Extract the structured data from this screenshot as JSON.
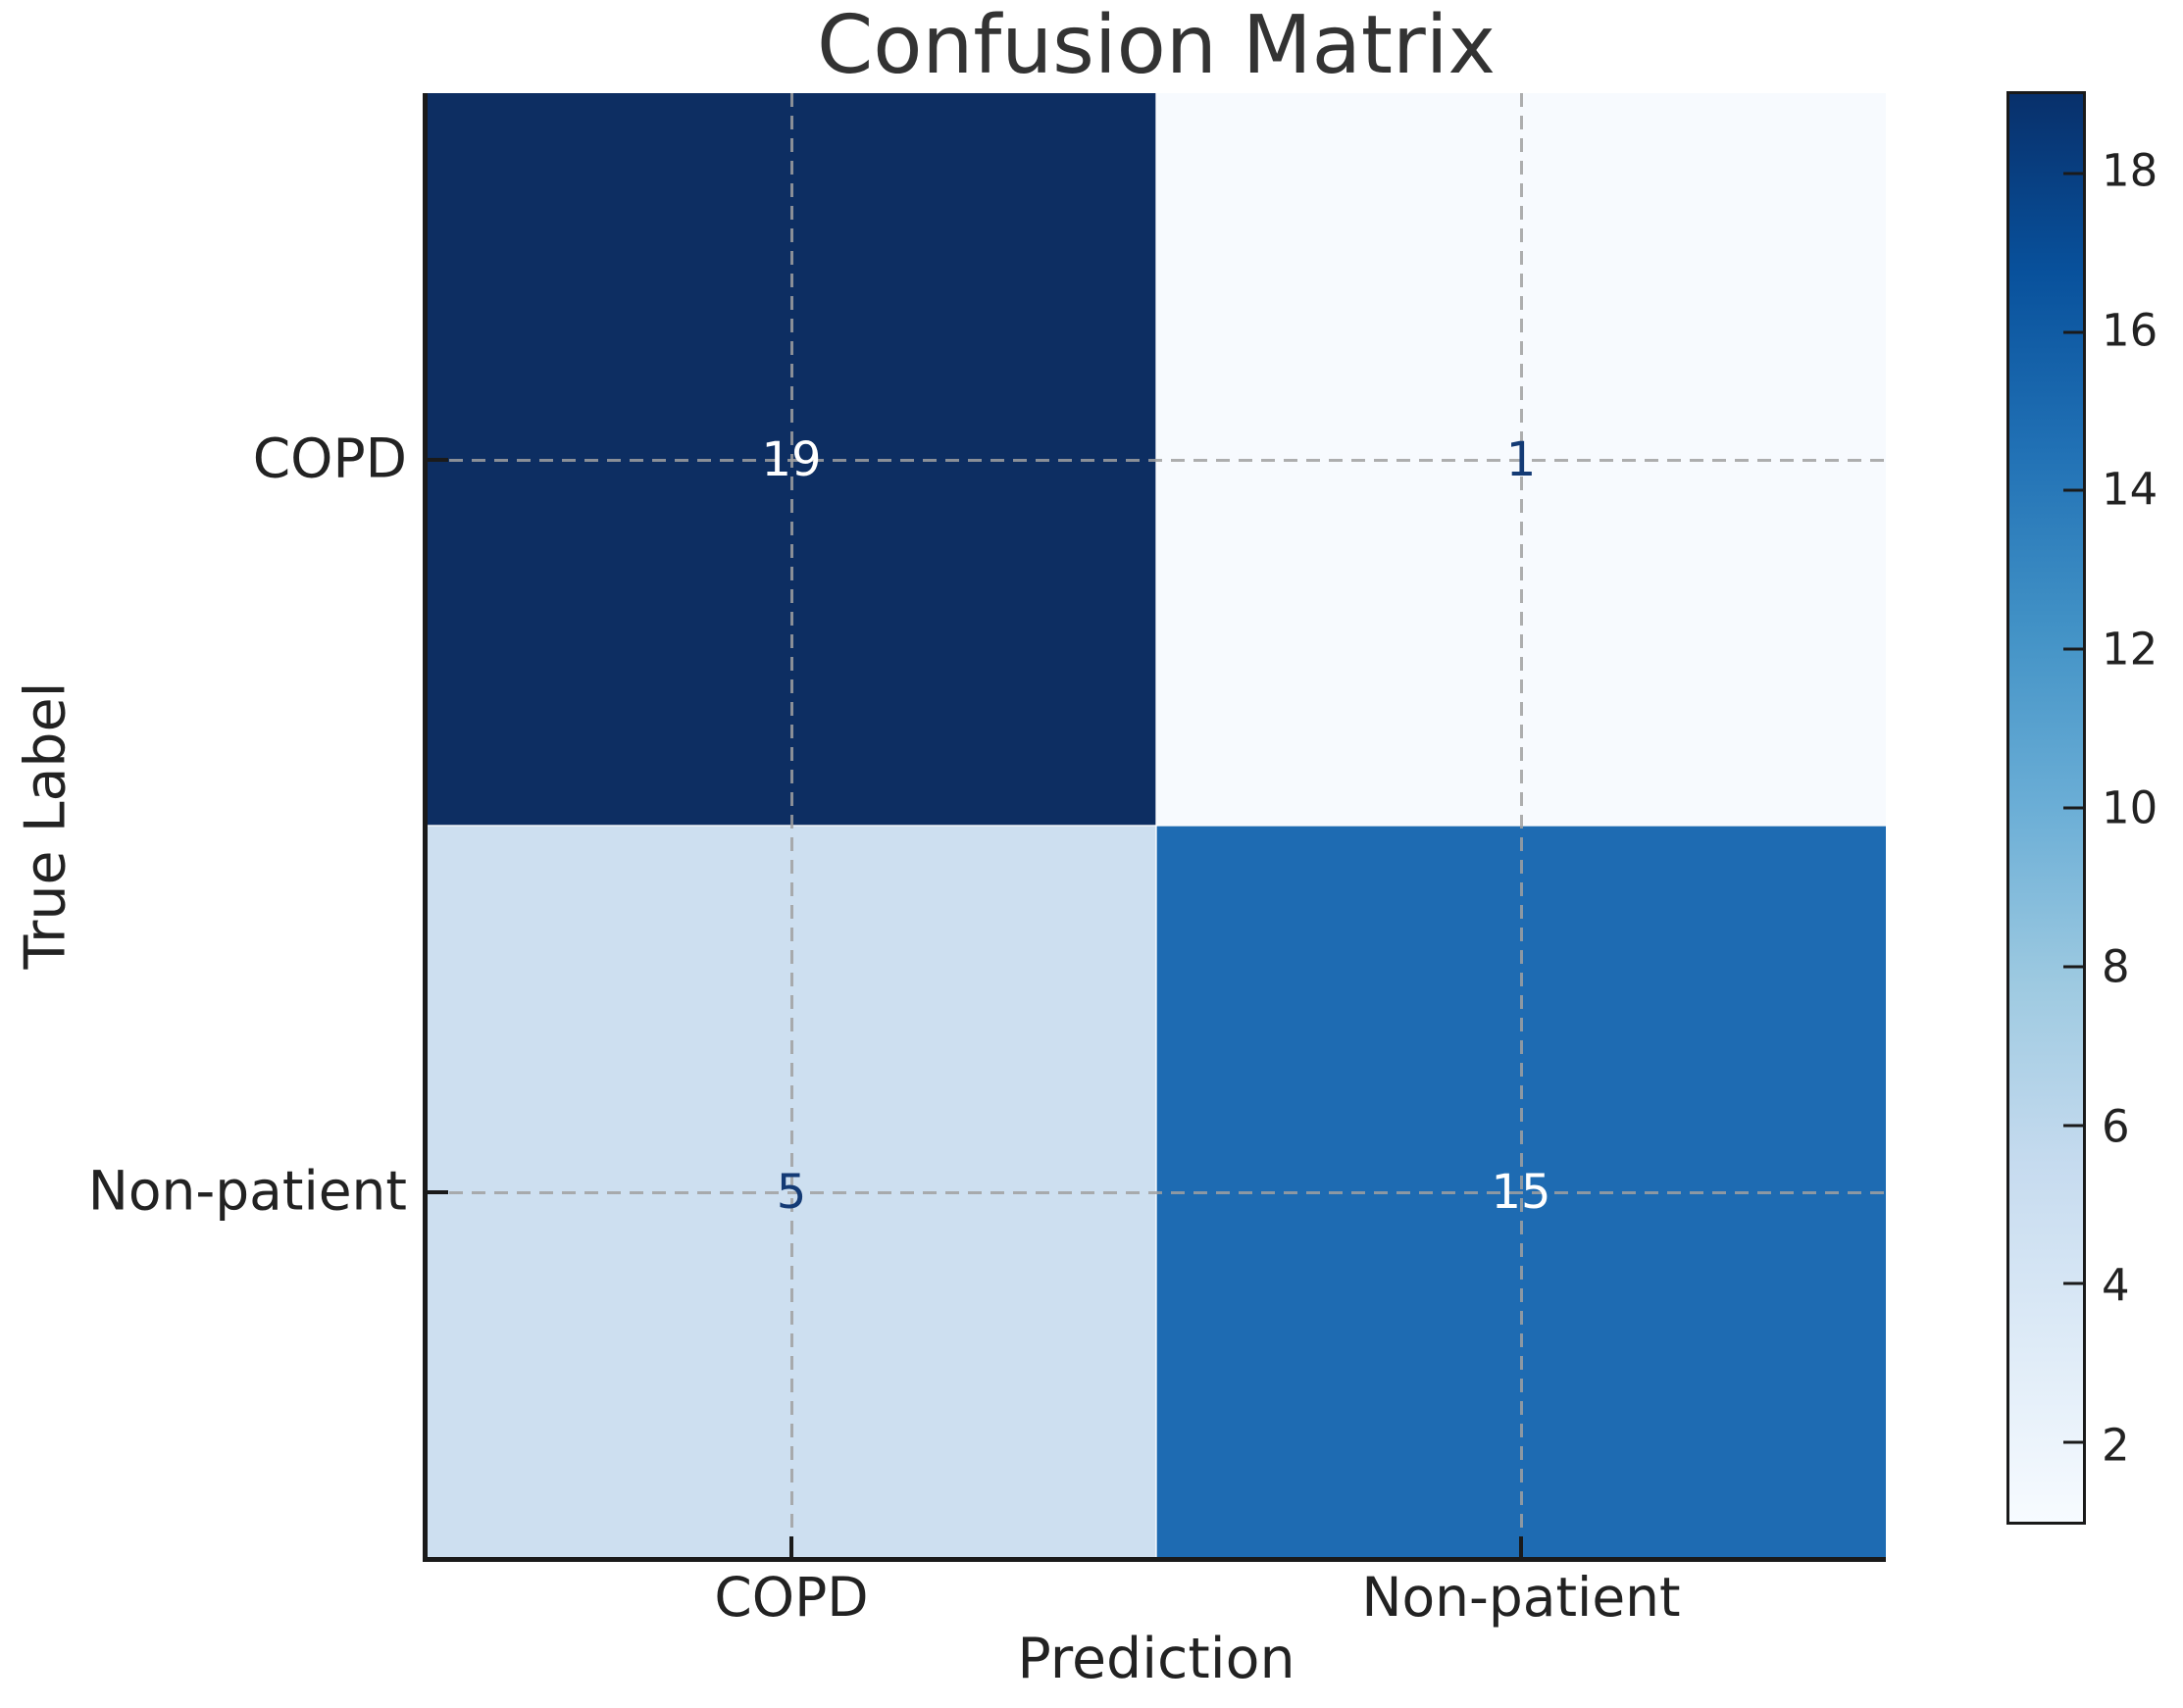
{
  "chart_data": {
    "type": "heatmap",
    "title": "Confusion Matrix",
    "xlabel": "Prediction",
    "ylabel": "True Label",
    "x_categories": [
      "COPD",
      "Non-patient"
    ],
    "y_categories": [
      "COPD",
      "Non-patient"
    ],
    "matrix": [
      [
        19,
        1
      ],
      [
        5,
        15
      ]
    ],
    "colormap": "Blues",
    "vmin": 1,
    "vmax": 19,
    "grid": "dashed gray lines crossing at cell centers",
    "legend_position": "right colorbar",
    "cells": [
      {
        "row": "COPD",
        "col": "COPD",
        "value": 19,
        "bg": "#0d2e62",
        "text_color": "#ffffff"
      },
      {
        "row": "COPD",
        "col": "Non-patient",
        "value": 1,
        "bg": "#f7fafe",
        "text_color": "#133a75"
      },
      {
        "row": "Non-patient",
        "col": "COPD",
        "value": 5,
        "bg": "#cddff0",
        "text_color": "#133a75"
      },
      {
        "row": "Non-patient",
        "col": "Non-patient",
        "value": 15,
        "bg": "#1e6bb2",
        "text_color": "#ffffff"
      }
    ],
    "colorbar": {
      "ticks": [
        18,
        16,
        14,
        12,
        10,
        8,
        6,
        4,
        2
      ],
      "gradient_top_to_bottom": [
        "#08306b",
        "#08519c",
        "#2171b5",
        "#4292c6",
        "#6baed6",
        "#9ecae1",
        "#c6dbef",
        "#deebf7",
        "#f7fbff"
      ]
    },
    "colors": {
      "spine": "#1a1a1a",
      "text": "#222222",
      "title_text": "#333333",
      "gridline": "#a0a0a0"
    }
  }
}
